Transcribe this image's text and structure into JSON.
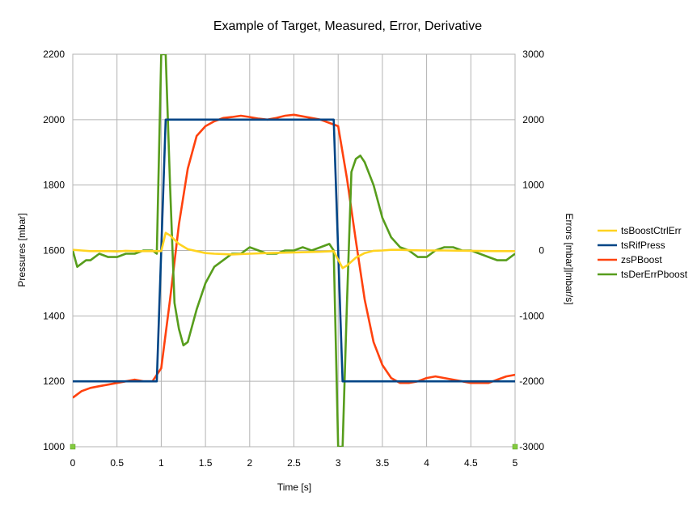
{
  "chart_data": {
    "type": "line",
    "title": "Example of Target, Measured, Error, Derivative",
    "xlabel": "Time [s]",
    "ylabel": "Pressures [mbar]",
    "y2label": "Errors [mbar]|mbar/s]",
    "xlim": [
      0,
      5
    ],
    "ylim": [
      1000,
      2200
    ],
    "y2lim": [
      -3000,
      3000
    ],
    "xticks": [
      "0",
      "0.5",
      "1",
      "1.5",
      "2",
      "2.5",
      "3",
      "3.5",
      "4",
      "4.5",
      "5"
    ],
    "yticks": [
      "1000",
      "1200",
      "1400",
      "1600",
      "1800",
      "2000",
      "2200"
    ],
    "y2ticks": [
      "-3000",
      "-2000",
      "-1000",
      "0",
      "1000",
      "2000",
      "3000"
    ],
    "grid": true,
    "legend_position": "right",
    "series": [
      {
        "name": "tsBoostCtrlErr",
        "axis": "right",
        "color": "#FFD320",
        "x": [
          0,
          0.1,
          0.2,
          0.3,
          0.4,
          0.5,
          0.6,
          0.7,
          0.8,
          0.9,
          1.0,
          1.05,
          1.1,
          1.2,
          1.3,
          1.4,
          1.5,
          1.6,
          1.7,
          1.8,
          1.9,
          2.0,
          2.2,
          2.5,
          2.8,
          2.95,
          3.05,
          3.1,
          3.2,
          3.3,
          3.4,
          3.5,
          3.6,
          3.7,
          3.8,
          4.0,
          4.2,
          4.5,
          4.8,
          5.0
        ],
        "y": [
          10,
          0,
          -10,
          -10,
          -10,
          -15,
          -5,
          -10,
          -10,
          -10,
          -10,
          270,
          230,
          100,
          20,
          -10,
          -40,
          -50,
          -55,
          -60,
          -55,
          -50,
          -40,
          -30,
          -20,
          -10,
          -270,
          -230,
          -110,
          -40,
          -5,
          0,
          10,
          10,
          5,
          0,
          0,
          -5,
          -10,
          -10
        ]
      },
      {
        "name": "tsRifPress",
        "axis": "left",
        "color": "#004586",
        "x": [
          0,
          0.95,
          1.05,
          2.95,
          3.05,
          5.0
        ],
        "y": [
          1200,
          1200,
          2000,
          2000,
          1200,
          1200
        ]
      },
      {
        "name": "zsPBoost",
        "axis": "left",
        "color": "#FF420E",
        "x": [
          0,
          0.1,
          0.2,
          0.3,
          0.4,
          0.5,
          0.6,
          0.7,
          0.8,
          0.9,
          1.0,
          1.1,
          1.2,
          1.3,
          1.4,
          1.5,
          1.6,
          1.7,
          1.8,
          1.9,
          2.0,
          2.1,
          2.2,
          2.3,
          2.4,
          2.5,
          2.6,
          2.7,
          2.8,
          2.9,
          3.0,
          3.1,
          3.2,
          3.3,
          3.4,
          3.5,
          3.6,
          3.7,
          3.8,
          3.9,
          4.0,
          4.1,
          4.2,
          4.3,
          4.4,
          4.5,
          4.6,
          4.7,
          4.8,
          4.9,
          5.0
        ],
        "y": [
          1150,
          1170,
          1180,
          1185,
          1190,
          1195,
          1200,
          1205,
          1200,
          1200,
          1240,
          1450,
          1680,
          1850,
          1950,
          1980,
          1995,
          2005,
          2008,
          2012,
          2008,
          2003,
          2000,
          2005,
          2012,
          2015,
          2010,
          2005,
          2000,
          1990,
          1980,
          1820,
          1630,
          1450,
          1320,
          1250,
          1210,
          1195,
          1195,
          1200,
          1210,
          1215,
          1210,
          1205,
          1200,
          1195,
          1195,
          1195,
          1205,
          1215,
          1220
        ]
      },
      {
        "name": "tsDerErrPboost",
        "axis": "right",
        "color": "#579D1C",
        "x": [
          0,
          0.05,
          0.1,
          0.15,
          0.2,
          0.3,
          0.4,
          0.5,
          0.6,
          0.7,
          0.8,
          0.9,
          0.95,
          1.0,
          1.05,
          1.1,
          1.15,
          1.2,
          1.25,
          1.3,
          1.4,
          1.5,
          1.6,
          1.7,
          1.8,
          1.9,
          2.0,
          2.1,
          2.2,
          2.3,
          2.4,
          2.5,
          2.6,
          2.7,
          2.8,
          2.9,
          2.95,
          3.0,
          3.05,
          3.1,
          3.15,
          3.2,
          3.25,
          3.3,
          3.4,
          3.5,
          3.6,
          3.7,
          3.8,
          3.9,
          4.0,
          4.1,
          4.2,
          4.3,
          4.4,
          4.5,
          4.6,
          4.7,
          4.8,
          4.9,
          5.0
        ],
        "y": [
          0,
          -250,
          -200,
          -150,
          -150,
          -50,
          -100,
          -100,
          -50,
          -50,
          0,
          0,
          -50,
          3000,
          3000,
          1000,
          -800,
          -1200,
          -1450,
          -1400,
          -900,
          -500,
          -250,
          -150,
          -50,
          -50,
          50,
          0,
          -50,
          -50,
          0,
          0,
          50,
          0,
          50,
          100,
          0,
          -3000,
          -3000,
          -800,
          1200,
          1400,
          1450,
          1350,
          1000,
          500,
          200,
          50,
          0,
          -100,
          -100,
          0,
          50,
          50,
          0,
          0,
          -50,
          -100,
          -150,
          -150,
          -50
        ]
      }
    ]
  }
}
